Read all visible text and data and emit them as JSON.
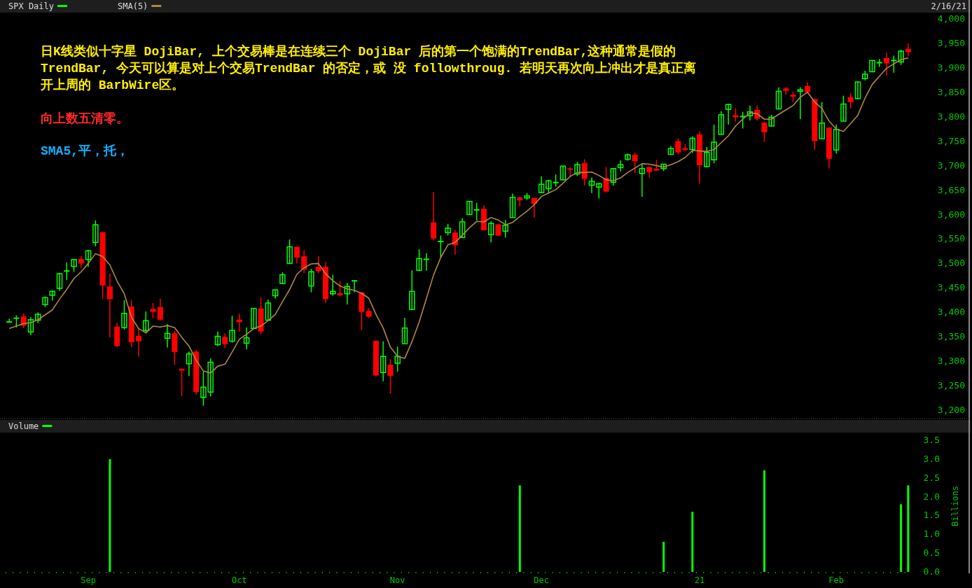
{
  "chart_data": [
    {
      "type": "candlestick",
      "subtitle": "2/16/21",
      "legend": "top left",
      "tick_labels": "y",
      "annotations": [
        "日K线类似十字星 DojiBar, 上个交易棒是在连续三个 DojiBar 后的第一个饱满的TrendBar,这种通常是假的TrendBar, 今天可以算是对上个交易TrendBar 的否定，或 没 followthroug. 若明天再次向上冲出才是真正离开上周的 BarbWire区。",
        "向上数五清零。",
        "SMA5,平，托，"
      ],
      "categories": [
        null,
        null,
        null,
        null,
        null,
        null,
        null,
        null,
        null,
        null,
        null,
        null,
        null,
        null,
        null,
        null,
        null,
        null,
        null,
        null,
        null,
        null,
        null,
        null,
        null,
        null,
        null,
        null,
        null,
        null,
        null,
        null,
        null,
        null,
        null,
        null,
        null,
        null,
        null,
        null,
        null,
        null,
        null,
        null,
        null,
        null,
        null,
        null,
        null,
        null,
        null,
        null,
        null,
        null,
        null,
        null,
        null,
        null,
        null,
        null,
        null,
        null,
        null,
        null,
        null,
        null,
        null,
        null,
        null,
        null,
        null,
        null,
        null,
        null,
        null,
        null,
        null,
        null,
        null,
        null,
        null,
        null,
        null,
        null,
        null,
        null,
        null,
        null,
        null,
        null,
        null,
        null,
        null,
        null,
        null,
        null,
        null,
        null,
        null,
        null,
        null,
        null,
        null,
        null,
        null,
        null,
        null,
        null,
        null,
        null,
        null,
        null,
        null,
        null,
        null,
        null,
        null,
        null,
        null,
        null,
        null,
        null,
        null,
        null,
        null,
        null
      ],
      "ylim": [
        3200,
        4000
      ],
      "yticks": [
        {
          "value": 3200,
          "label": "3,200"
        },
        {
          "value": 3250,
          "label": "3,250"
        },
        {
          "value": 3300,
          "label": "3,300"
        },
        {
          "value": 3350,
          "label": "3,350"
        },
        {
          "value": 3400,
          "label": "3,400"
        },
        {
          "value": 3450,
          "label": "3,450"
        },
        {
          "value": 3500,
          "label": "3,500"
        },
        {
          "value": 3550,
          "label": "3,550"
        },
        {
          "value": 3600,
          "label": "3,600"
        },
        {
          "value": 3650,
          "label": "3,650"
        },
        {
          "value": 3700,
          "label": "3,700"
        },
        {
          "value": 3750,
          "label": "3,750"
        },
        {
          "value": 3800,
          "label": "3,800"
        },
        {
          "value": 3850,
          "label": "3,850"
        },
        {
          "value": 3900,
          "label": "3,900"
        },
        {
          "value": 3950,
          "label": "3,950"
        },
        {
          "value": 4000,
          "label": "4,000"
        }
      ],
      "series": [
        {
          "name": "SPX Daily",
          "color": "#00ff00",
          "colors": [
            "#00ff00",
            "#00ff00",
            "#ff0000",
            "#00ff00",
            "#00ff00",
            "#00ff00",
            "#00ff00",
            "#00ff00",
            "#00ff00",
            "#00ff00",
            "#ff0000",
            "#00ff00",
            "#00ff00",
            "#ff0000",
            "#ff0000",
            "#ff0000",
            "#00ff00",
            "#ff0000",
            "#ff0000",
            "#00ff00",
            "#ff0000",
            "#ff0000",
            "#00ff00",
            "#ff0000",
            "#ff0000",
            "#00ff00",
            "#ff0000",
            "#00ff00",
            "#00ff00",
            "#00ff00",
            "#ff0000",
            "#00ff00",
            "#ff0000",
            "#00ff00",
            "#00ff00",
            "#ff0000",
            "#00ff00",
            "#00ff00",
            "#00ff00",
            "#00ff00",
            "#ff0000",
            "#ff0000",
            "#00ff00",
            "#ff0000",
            "#ff0000",
            "#00ff00",
            "#ff0000",
            "#00ff00",
            "#00ff00",
            "#ff0000",
            "#ff0000",
            "#ff0000",
            "#00ff00",
            "#ff0000",
            "#00ff00",
            "#00ff00",
            "#00ff00",
            "#00ff00",
            "#00ff00",
            "#ff0000",
            "#00ff00",
            "#00ff00",
            "#ff0000",
            "#00ff00",
            "#00ff00",
            "#00ff00",
            "#ff0000",
            "#00ff00",
            "#ff0000",
            "#00ff00",
            "#00ff00",
            "#ff0000",
            "#00ff00",
            "#ff0000",
            "#00ff00",
            "#00ff00",
            "#00ff00",
            "#00ff00",
            "#ff0000",
            "#00ff00",
            "#ff0000",
            "#00ff00",
            "#00ff00",
            "#ff0000",
            "#00ff00",
            "#00ff00",
            "#00ff00",
            "#ff0000",
            "#00ff00",
            "#ff0000",
            "#ff0000",
            "#00ff00",
            "#00ff00",
            "#ff0000",
            "#ff0000",
            "#00ff00",
            "#ff0000",
            "#00ff00",
            "#00ff00",
            "#00ff00",
            "#00ff00",
            "#ff0000",
            "#00ff00",
            "#00ff00",
            "#ff0000",
            "#ff0000",
            "#00ff00",
            "#00ff00",
            "#ff0000",
            "#ff0000",
            "#00ff00",
            "#ff0000",
            "#ff0000",
            "#00ff00",
            "#ff0000",
            "#00ff00",
            "#00ff00",
            "#ff0000",
            "#00ff00",
            "#00ff00",
            "#00ff00",
            "#00ff00",
            "#ff0000",
            "#00ff00",
            "#00ff00",
            "#ff0000"
          ],
          "ohlc": [
            [
              3380,
              3387,
              3380,
              3381
            ],
            [
              3387,
              3394,
              3369,
              3389
            ],
            [
              3392,
              3398,
              3368,
              3373
            ],
            [
              3360,
              3390,
              3353,
              3385
            ],
            [
              3384,
              3400,
              3378,
              3396
            ],
            [
              3416,
              3433,
              3411,
              3430
            ],
            [
              3435,
              3445,
              3424,
              3443
            ],
            [
              3449,
              3481,
              3444,
              3479
            ],
            [
              3484,
              3502,
              3466,
              3485
            ],
            [
              3494,
              3509,
              3483,
              3508
            ],
            [
              3509,
              3515,
              3491,
              3500
            ],
            [
              3508,
              3528,
              3493,
              3526
            ],
            [
              3543,
              3588,
              3535,
              3579
            ],
            [
              3564,
              3564,
              3427,
              3455
            ],
            [
              3453,
              3479,
              3349,
              3427
            ],
            [
              3371,
              3379,
              3329,
              3331
            ],
            [
              3369,
              3425,
              3365,
              3398
            ],
            [
              3412,
              3425,
              3329,
              3339
            ],
            [
              3352,
              3368,
              3310,
              3341
            ],
            [
              3363,
              3402,
              3360,
              3383
            ],
            [
              3407,
              3419,
              3388,
              3401
            ],
            [
              3411,
              3428,
              3383,
              3385
            ],
            [
              3347,
              3376,
              3328,
              3357
            ],
            [
              3357,
              3362,
              3293,
              3319
            ],
            [
              3285,
              3285,
              3229,
              3281
            ],
            [
              3295,
              3320,
              3270,
              3315
            ],
            [
              3320,
              3323,
              3232,
              3237
            ],
            [
              3226,
              3279,
              3209,
              3247
            ],
            [
              3237,
              3306,
              3228,
              3298
            ],
            [
              3334,
              3361,
              3331,
              3351
            ],
            [
              3350,
              3357,
              3327,
              3335
            ],
            [
              3341,
              3393,
              3338,
              3363
            ],
            [
              3385,
              3397,
              3361,
              3380
            ],
            [
              3337,
              3369,
              3324,
              3348
            ],
            [
              3367,
              3409,
              3367,
              3408
            ],
            [
              3408,
              3431,
              3355,
              3361
            ],
            [
              3384,
              3426,
              3384,
              3419
            ],
            [
              3434,
              3447,
              3428,
              3446
            ],
            [
              3459,
              3482,
              3458,
              3477
            ],
            [
              3500,
              3549,
              3499,
              3534
            ],
            [
              3534,
              3534,
              3500,
              3512
            ],
            [
              3515,
              3527,
              3480,
              3488
            ],
            [
              3454,
              3489,
              3441,
              3483
            ],
            [
              3493,
              3515,
              3480,
              3484
            ],
            [
              3493,
              3502,
              3419,
              3427
            ],
            [
              3438,
              3477,
              3434,
              3443
            ],
            [
              3439,
              3464,
              3433,
              3435
            ],
            [
              3438,
              3460,
              3416,
              3453
            ],
            [
              3464,
              3466,
              3441,
              3465
            ],
            [
              3441,
              3441,
              3364,
              3401
            ],
            [
              3403,
              3409,
              3388,
              3391
            ],
            [
              3342,
              3342,
              3269,
              3271
            ],
            [
              3277,
              3341,
              3259,
              3310
            ],
            [
              3293,
              3304,
              3234,
              3270
            ],
            [
              3296,
              3330,
              3279,
              3310
            ],
            [
              3336,
              3389,
              3336,
              3368
            ],
            [
              3406,
              3486,
              3405,
              3443
            ],
            [
              3486,
              3529,
              3485,
              3510
            ],
            [
              3508,
              3521,
              3485,
              3509
            ],
            [
              3584,
              3646,
              3547,
              3551
            ],
            [
              3544,
              3557,
              3512,
              3546
            ],
            [
              3563,
              3581,
              3557,
              3572
            ],
            [
              3563,
              3569,
              3518,
              3537
            ],
            [
              3553,
              3593,
              3553,
              3585
            ],
            [
              3600,
              3628,
              3600,
              3627
            ],
            [
              3609,
              3624,
              3588,
              3610
            ],
            [
              3612,
              3619,
              3567,
              3568
            ],
            [
              3559,
              3586,
              3543,
              3582
            ],
            [
              3580,
              3581,
              3556,
              3557
            ],
            [
              3566,
              3589,
              3553,
              3578
            ],
            [
              3594,
              3643,
              3594,
              3635
            ],
            [
              3635,
              3636,
              3617,
              3629
            ],
            [
              3634,
              3644,
              3630,
              3638
            ],
            [
              3634,
              3634,
              3594,
              3622
            ],
            [
              3645,
              3678,
              3645,
              3662
            ],
            [
              3653,
              3671,
              3645,
              3669
            ],
            [
              3665,
              3682,
              3657,
              3666
            ],
            [
              3671,
              3700,
              3670,
              3699
            ],
            [
              3694,
              3697,
              3678,
              3692
            ],
            [
              3683,
              3708,
              3679,
              3702
            ],
            [
              3705,
              3713,
              3660,
              3673
            ],
            [
              3660,
              3676,
              3644,
              3668
            ],
            [
              3656,
              3665,
              3633,
              3663
            ],
            [
              3675,
              3697,
              3645,
              3647
            ],
            [
              3666,
              3695,
              3659,
              3694
            ],
            [
              3696,
              3711,
              3688,
              3702
            ],
            [
              3713,
              3725,
              3710,
              3722
            ],
            [
              3722,
              3726,
              3685,
              3709
            ],
            [
              3684,
              3702,
              3636,
              3694
            ],
            [
              3697,
              3698,
              3675,
              3687
            ],
            [
              3694,
              3712,
              3689,
              3690
            ],
            [
              3694,
              3703,
              3689,
              3703
            ],
            [
              3723,
              3740,
              3723,
              3735
            ],
            [
              3750,
              3756,
              3723,
              3727
            ],
            [
              3736,
              3744,
              3730,
              3732
            ],
            [
              3733,
              3760,
              3726,
              3756
            ],
            [
              3764,
              3770,
              3663,
              3701
            ],
            [
              3698,
              3738,
              3696,
              3727
            ],
            [
              3712,
              3784,
              3705,
              3748
            ],
            [
              3764,
              3811,
              3764,
              3804
            ],
            [
              3815,
              3826,
              3784,
              3825
            ],
            [
              3803,
              3817,
              3790,
              3799
            ],
            [
              3800,
              3810,
              3776,
              3801
            ],
            [
              3802,
              3823,
              3792,
              3810
            ],
            [
              3814,
              3823,
              3792,
              3796
            ],
            [
              3788,
              3789,
              3749,
              3768
            ],
            [
              3781,
              3804,
              3780,
              3799
            ],
            [
              3816,
              3860,
              3816,
              3852
            ],
            [
              3858,
              3861,
              3845,
              3853
            ],
            [
              3845,
              3852,
              3830,
              3841
            ],
            [
              3852,
              3860,
              3795,
              3855
            ],
            [
              3863,
              3870,
              3848,
              3850
            ],
            [
              3836,
              3837,
              3732,
              3750
            ],
            [
              3755,
              3830,
              3755,
              3787
            ],
            [
              3778,
              3778,
              3694,
              3714
            ],
            [
              3732,
              3784,
              3725,
              3774
            ],
            [
              3791,
              3843,
              3791,
              3826
            ],
            [
              3840,
              3848,
              3817,
              3830
            ],
            [
              3837,
              3872,
              3836,
              3871
            ],
            [
              3878,
              3894,
              3874,
              3887
            ],
            [
              3892,
              3916,
              3892,
              3915
            ],
            [
              3910,
              3918,
              3902,
              3911
            ],
            [
              3920,
              3931,
              3885,
              3909
            ],
            [
              3914,
              3925,
              3890,
              3916
            ],
            [
              3912,
              3937,
              3906,
              3934
            ],
            [
              3939,
              3950,
              3923,
              3932
            ]
          ]
        },
        {
          "name": "SMA(5)",
          "type": "line",
          "color": "#b08840",
          "values": [
            3367,
            3372,
            3377,
            3379,
            3385,
            3395,
            3405,
            3427,
            3447,
            3469,
            3483,
            3500,
            3520,
            3514,
            3497,
            3464,
            3438,
            3390,
            3367,
            3358,
            3372,
            3370,
            3373,
            3369,
            3349,
            3331,
            3302,
            3280,
            3276,
            3290,
            3294,
            3319,
            3345,
            3355,
            3367,
            3372,
            3383,
            3396,
            3422,
            3447,
            3478,
            3491,
            3499,
            3500,
            3479,
            3465,
            3454,
            3448,
            3445,
            3439,
            3429,
            3396,
            3368,
            3329,
            3310,
            3306,
            3340,
            3380,
            3428,
            3476,
            3512,
            3538,
            3543,
            3558,
            3573,
            3586,
            3585,
            3594,
            3589,
            3579,
            3584,
            3596,
            3607,
            3620,
            3637,
            3644,
            3651,
            3664,
            3678,
            3686,
            3686,
            3687,
            3680,
            3671,
            3669,
            3675,
            3686,
            3695,
            3704,
            3703,
            3700,
            3697,
            3702,
            3708,
            3717,
            3731,
            3730,
            3729,
            3733,
            3747,
            3761,
            3781,
            3795,
            3808,
            3806,
            3795,
            3795,
            3805,
            3814,
            3823,
            3840,
            3850,
            3830,
            3817,
            3791,
            3775,
            3770,
            3786,
            3803,
            3838,
            3866,
            3883,
            3899,
            3908,
            3917,
            3920
          ]
        }
      ]
    },
    {
      "type": "bar",
      "legend": "top left",
      "ylabel": "Billions",
      "categories": [
        null,
        null,
        null,
        null,
        null,
        null,
        null,
        null,
        null,
        null,
        null,
        "Sep",
        null,
        null,
        null,
        null,
        null,
        null,
        null,
        null,
        null,
        null,
        null,
        null,
        null,
        null,
        null,
        null,
        null,
        null,
        null,
        null,
        "Oct",
        null,
        null,
        null,
        null,
        null,
        null,
        null,
        null,
        null,
        null,
        null,
        null,
        null,
        null,
        null,
        null,
        null,
        null,
        null,
        null,
        null,
        "Nov",
        null,
        null,
        null,
        null,
        null,
        null,
        null,
        null,
        null,
        null,
        null,
        null,
        null,
        null,
        null,
        null,
        null,
        null,
        null,
        "Dec",
        null,
        null,
        null,
        null,
        null,
        null,
        null,
        null,
        null,
        null,
        null,
        null,
        null,
        null,
        null,
        null,
        null,
        null,
        null,
        null,
        null,
        "21",
        null,
        null,
        null,
        null,
        null,
        null,
        null,
        null,
        null,
        null,
        null,
        null,
        null,
        null,
        null,
        null,
        null,
        null,
        "Feb",
        null,
        null,
        null,
        null,
        null,
        null,
        null,
        null,
        null,
        null
      ],
      "ylim": [
        0,
        3.5
      ],
      "yticks": [
        {
          "value": 0,
          "label": "0.0"
        },
        {
          "value": 0.5,
          "label": "0.5"
        },
        {
          "value": 1,
          "label": "1.0"
        },
        {
          "value": 1.5,
          "label": "1.5"
        },
        {
          "value": 2,
          "label": "2.0"
        },
        {
          "value": 2.5,
          "label": "2.5"
        },
        {
          "value": 3,
          "label": "3.0"
        },
        {
          "value": 3.5,
          "label": "3.5"
        }
      ],
      "series": [
        {
          "name": "Volume",
          "color": "#00ff00",
          "values": [
            null,
            null,
            null,
            null,
            null,
            null,
            null,
            null,
            null,
            null,
            null,
            null,
            null,
            null,
            3.0,
            null,
            null,
            null,
            null,
            null,
            null,
            null,
            null,
            null,
            null,
            null,
            null,
            null,
            null,
            null,
            null,
            null,
            null,
            null,
            null,
            null,
            null,
            null,
            null,
            null,
            null,
            null,
            null,
            null,
            null,
            null,
            null,
            null,
            null,
            null,
            null,
            null,
            null,
            null,
            null,
            null,
            null,
            null,
            null,
            null,
            null,
            null,
            null,
            null,
            null,
            null,
            null,
            null,
            null,
            null,
            null,
            2.3,
            null,
            null,
            null,
            null,
            null,
            null,
            null,
            null,
            null,
            null,
            null,
            null,
            null,
            null,
            null,
            null,
            null,
            null,
            null,
            0.8,
            null,
            null,
            null,
            1.6,
            null,
            null,
            null,
            null,
            null,
            null,
            null,
            null,
            null,
            2.7,
            null,
            null,
            null,
            null,
            null,
            null,
            null,
            null,
            null,
            null,
            null,
            null,
            null,
            null,
            null,
            null,
            null,
            null,
            1.8,
            2.3
          ]
        }
      ]
    }
  ]
}
